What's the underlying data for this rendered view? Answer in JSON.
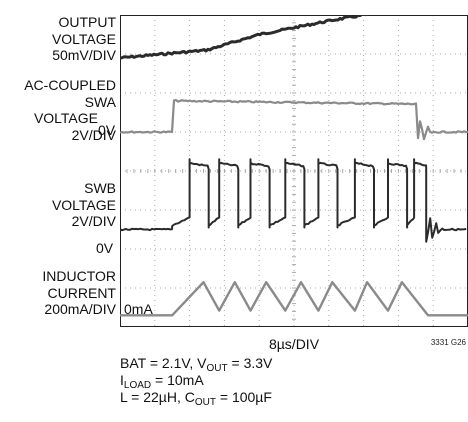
{
  "chart_data": {
    "type": "line",
    "xlabel": "8µs/DIV",
    "grid": true,
    "divisions": {
      "x": 10,
      "y": 8
    },
    "channels": [
      {
        "lines": [
          "OUTPUT",
          "VOLTAGE",
          "50mV/DIV"
        ]
      },
      {
        "lines": [
          "AC-COUPLED",
          "SWA",
          "VOLTAGE",
          "2V/DIV"
        ],
        "zero_label": "0V"
      },
      {
        "lines": [
          "SWB",
          "VOLTAGE",
          "2V/DIV"
        ],
        "zero_label": "0V"
      },
      {
        "lines": [
          "INDUCTOR",
          "CURRENT",
          "200mA/DIV"
        ],
        "zero_label": "0mA"
      }
    ],
    "series": [
      {
        "x": [
          0,
          2.5,
          4,
          6,
          8,
          9.8,
          10
        ],
        "y": [
          0.1,
          0.3,
          0.7,
          1.05,
          1.35,
          1.45,
          1.45
        ]
      },
      {
        "x": [
          0,
          1.5,
          1.55,
          8.5,
          8.55,
          10
        ],
        "y": [
          0,
          0,
          0.8,
          0.7,
          0,
          0
        ]
      },
      {
        "x": [
          0,
          1.5,
          2.0,
          8.8,
          10
        ],
        "y": [
          0,
          0,
          1.7,
          1.7,
          0
        ]
      },
      {
        "x": [
          0,
          1.5,
          8.5,
          9.0,
          10
        ],
        "y": [
          0,
          0,
          0.8,
          0,
          0
        ]
      }
    ],
    "colors": {
      "trace_dark": "#2b2b2b",
      "trace_gray": "#8a8a8a",
      "grid": "#aaaaaa"
    }
  },
  "figure_number": "3331 G26",
  "conditions": {
    "line1": {
      "a": "BAT = 2.1V, V",
      "sub": "OUT",
      "b": " = 3.3V"
    },
    "line2": {
      "a": "I",
      "sub": "LOAD",
      "b": " = 10mA"
    },
    "line3": {
      "a": "L = 22µH, C",
      "sub": "OUT",
      "b": " = 100µF"
    }
  }
}
